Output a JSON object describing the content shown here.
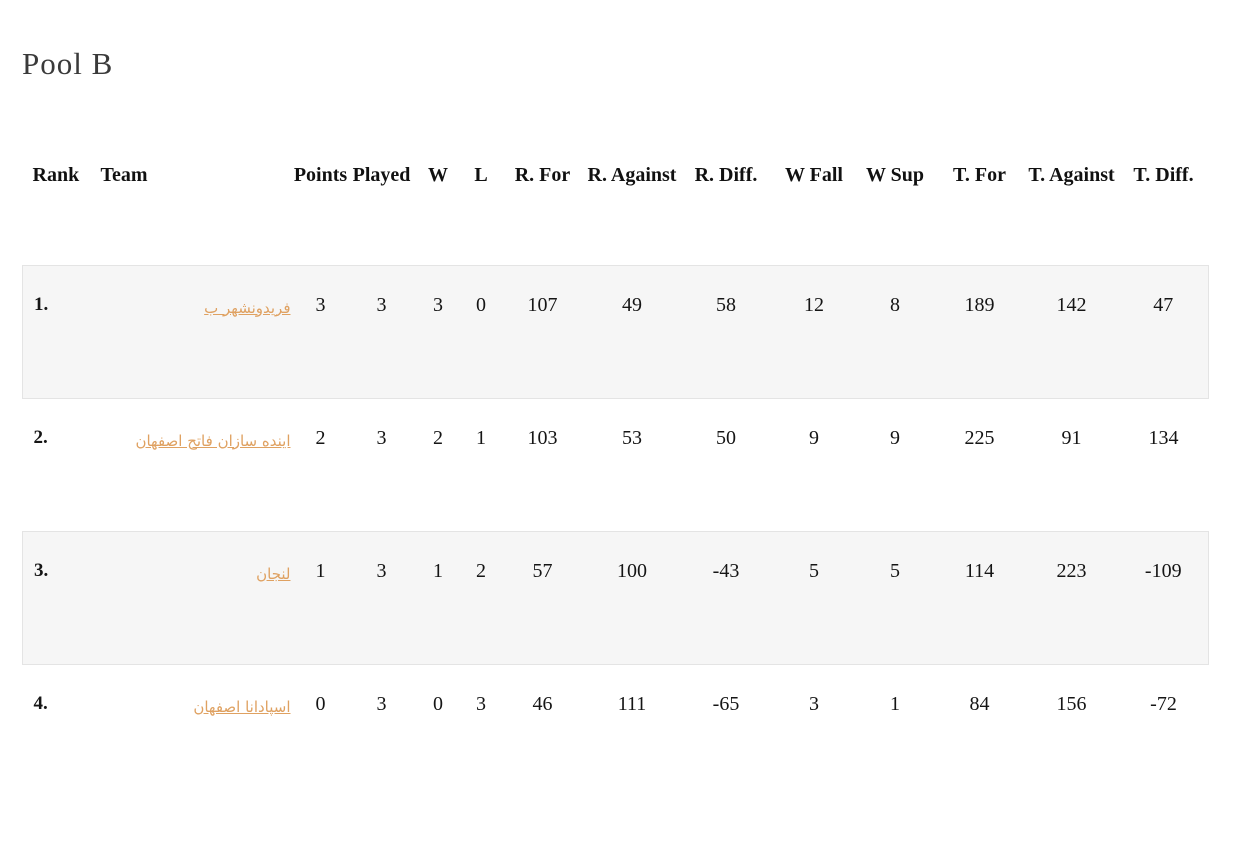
{
  "page": {
    "title": "Pool B"
  },
  "colors": {
    "team_link": "#dfa161",
    "row_stripe": "#f6f6f6",
    "row_border": "#e4e4e4"
  },
  "table": {
    "columns": [
      {
        "key": "rank",
        "label": "Rank"
      },
      {
        "key": "team",
        "label": "Team"
      },
      {
        "key": "points",
        "label": "Points"
      },
      {
        "key": "played",
        "label": "Played"
      },
      {
        "key": "w",
        "label": "W"
      },
      {
        "key": "l",
        "label": "L"
      },
      {
        "key": "r_for",
        "label": "R. For"
      },
      {
        "key": "r_against",
        "label": "R. Against"
      },
      {
        "key": "r_diff",
        "label": "R. Diff."
      },
      {
        "key": "w_fall",
        "label": "W Fall"
      },
      {
        "key": "w_sup",
        "label": "W Sup"
      },
      {
        "key": "t_for",
        "label": "T. For"
      },
      {
        "key": "t_against",
        "label": "T. Against"
      },
      {
        "key": "t_diff",
        "label": "T. Diff."
      }
    ],
    "rows": [
      {
        "rank": "1.",
        "team": "فریدونشهر ب",
        "points": "3",
        "played": "3",
        "w": "3",
        "l": "0",
        "r_for": "107",
        "r_against": "49",
        "r_diff": "58",
        "w_fall": "12",
        "w_sup": "8",
        "t_for": "189",
        "t_against": "142",
        "t_diff": "47"
      },
      {
        "rank": "2.",
        "team": "اینده سازان فاتح اصفهان",
        "points": "2",
        "played": "3",
        "w": "2",
        "l": "1",
        "r_for": "103",
        "r_against": "53",
        "r_diff": "50",
        "w_fall": "9",
        "w_sup": "9",
        "t_for": "225",
        "t_against": "91",
        "t_diff": "134"
      },
      {
        "rank": "3.",
        "team": "لنجان",
        "points": "1",
        "played": "3",
        "w": "1",
        "l": "2",
        "r_for": "57",
        "r_against": "100",
        "r_diff": "-43",
        "w_fall": "5",
        "w_sup": "5",
        "t_for": "114",
        "t_against": "223",
        "t_diff": "-109"
      },
      {
        "rank": "4.",
        "team": "اسپادانا اصفهان",
        "points": "0",
        "played": "3",
        "w": "0",
        "l": "3",
        "r_for": "46",
        "r_against": "111",
        "r_diff": "-65",
        "w_fall": "3",
        "w_sup": "1",
        "t_for": "84",
        "t_against": "156",
        "t_diff": "-72"
      }
    ]
  }
}
